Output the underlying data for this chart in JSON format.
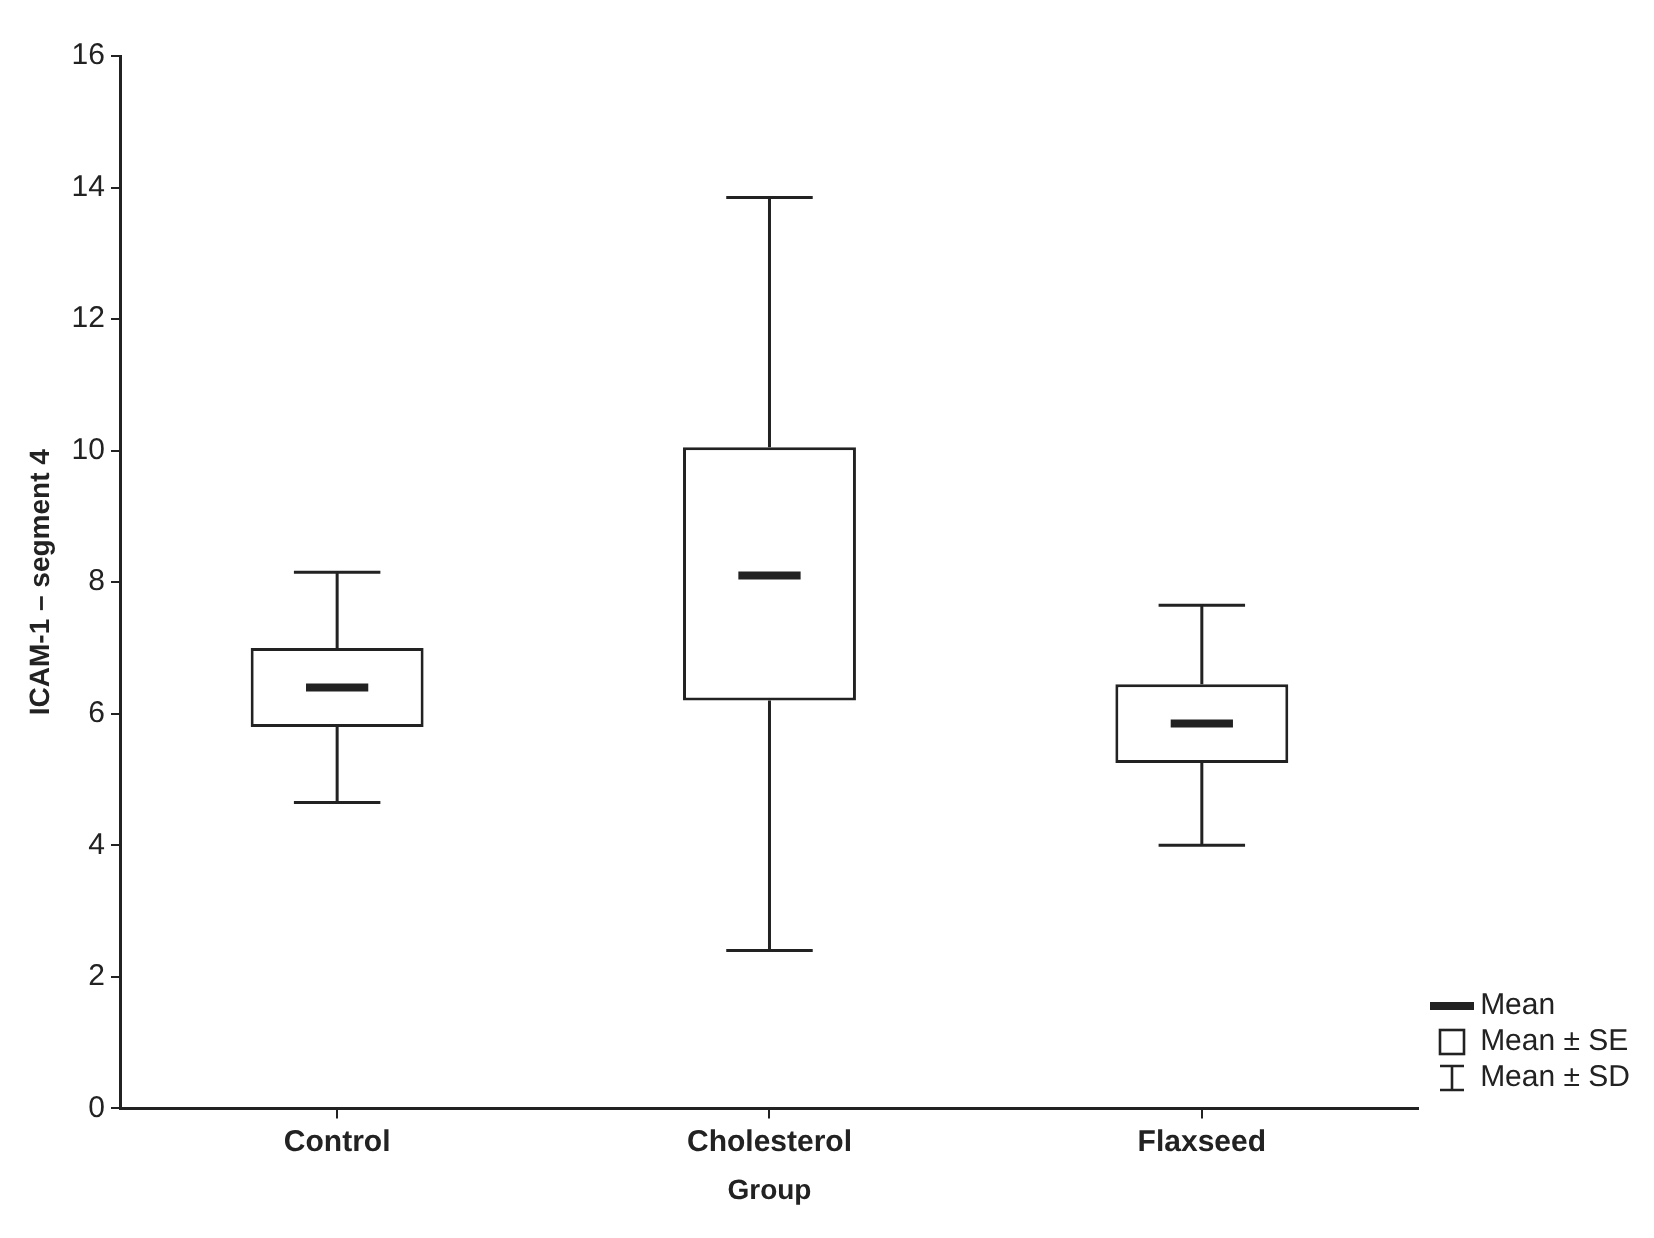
{
  "chart_data": {
    "type": "box",
    "xlabel": "Group",
    "ylabel": "ICAM-1 – segment 4",
    "categories": [
      "Control",
      "Cholesterol",
      "Flaxseed"
    ],
    "boxes": [
      {
        "low": 4.65,
        "q1": 5.8,
        "median": 6.4,
        "q3": 7.0,
        "high": 8.15
      },
      {
        "low": 2.4,
        "q1": 6.2,
        "median": 8.1,
        "q3": 10.05,
        "high": 13.85
      },
      {
        "low": 4.0,
        "q1": 5.25,
        "median": 5.85,
        "q3": 6.45,
        "high": 7.65
      }
    ],
    "ylim": [
      0,
      16
    ],
    "yticks": [
      0,
      2,
      4,
      6,
      8,
      10,
      12,
      14,
      16
    ],
    "grid": false,
    "annotations": [
      "Mean",
      "Mean ± SE",
      "Mean ± SD"
    ]
  }
}
